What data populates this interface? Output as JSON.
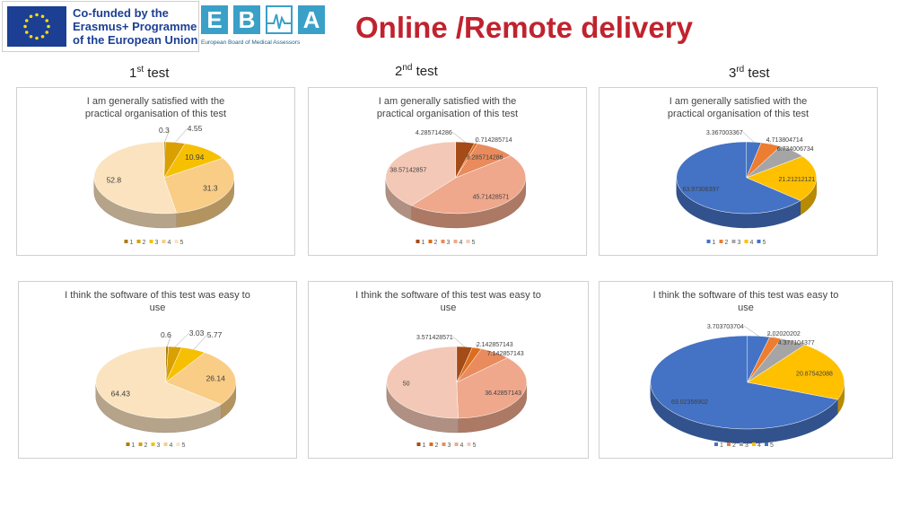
{
  "header": {
    "eu_logo_lines": [
      "Co-funded by the",
      "Erasmus+ Programme",
      "of the European Union"
    ],
    "ebma_letters": [
      "E",
      "B",
      "M",
      "A"
    ],
    "ebma_subtitle": "European Board of Medical Assessors",
    "title": "Online /Remote delivery"
  },
  "tests": [
    {
      "num": "1",
      "sup": "st",
      "word": "test"
    },
    {
      "num": "2",
      "sup": "nd",
      "word": "test"
    },
    {
      "num": "3",
      "sup": "rd",
      "word": "test"
    }
  ],
  "legend_labels": [
    "1",
    "2",
    "3",
    "4",
    "5"
  ],
  "palettes": {
    "yellow": [
      "#a97c0e",
      "#d9a000",
      "#f6c000",
      "#f9cd86",
      "#fbe3bf"
    ],
    "orange": [
      "#a44b17",
      "#dd6d1e",
      "#e98b5c",
      "#efa88c",
      "#f3c8b6"
    ],
    "office": [
      "#4472c4",
      "#ed7d31",
      "#a5a5a5",
      "#ffc000",
      "#4472c4"
    ]
  },
  "chart_data": [
    {
      "type": "pie",
      "title": "I am generally satisfied with the practical organisation of this test",
      "labels": [
        "1",
        "2",
        "3",
        "4",
        "5"
      ],
      "values": [
        0.3,
        4.55,
        10.94,
        31.3,
        52.8
      ],
      "data_labels": [
        "0.3",
        "4.55",
        "10.94",
        "31.3",
        "52.8"
      ],
      "palette": "yellow"
    },
    {
      "type": "pie",
      "title": "I am generally satisfied with the practical organisation of this test",
      "labels": [
        "1",
        "2",
        "3",
        "4",
        "5"
      ],
      "values": [
        4.285714286,
        0.714285714,
        9.285714286,
        45.71428571,
        38.57142857
      ],
      "data_labels": [
        "4.285714286",
        "0.714285714",
        "9.285714286",
        "45.71428571",
        "38.57142857"
      ],
      "palette": "orange"
    },
    {
      "type": "pie",
      "title": "I am generally satisfied with the practical organisation of this test",
      "labels": [
        "1",
        "2",
        "3",
        "4",
        "5"
      ],
      "values": [
        3.367003367,
        4.713804714,
        6.734006734,
        21.21212121,
        63.97306397
      ],
      "data_labels": [
        "3.367003367",
        "4.713804714",
        "6.734006734",
        "21.21212121",
        "63.97306397"
      ],
      "palette": "office"
    },
    {
      "type": "pie",
      "title": "I think the software of this test was easy to use",
      "labels": [
        "1",
        "2",
        "3",
        "4",
        "5"
      ],
      "values": [
        0.6,
        3.03,
        5.77,
        26.14,
        64.43
      ],
      "data_labels": [
        "0.6",
        "3.03",
        "5.77",
        "26.14",
        "64.43"
      ],
      "palette": "yellow"
    },
    {
      "type": "pie",
      "title": "I think the software of this test was easy to use",
      "labels": [
        "1",
        "2",
        "3",
        "4",
        "5"
      ],
      "values": [
        3.571428571,
        2.142857143,
        7.142857143,
        36.42857143,
        50
      ],
      "data_labels": [
        "3.571428571",
        "2.142857143",
        "7.142857143",
        "36.42857143",
        "50"
      ],
      "palette": "orange"
    },
    {
      "type": "pie",
      "title": "I think the software of this test was easy to use",
      "labels": [
        "1",
        "2",
        "3",
        "4",
        "5"
      ],
      "values": [
        3.703703704,
        2.02020202,
        4.377104377,
        20.87542088,
        69.02356902
      ],
      "data_labels": [
        "3.703703704",
        "2.02020202",
        "4.377104377",
        "20.87542088",
        "69.02356902"
      ],
      "palette": "office"
    }
  ]
}
